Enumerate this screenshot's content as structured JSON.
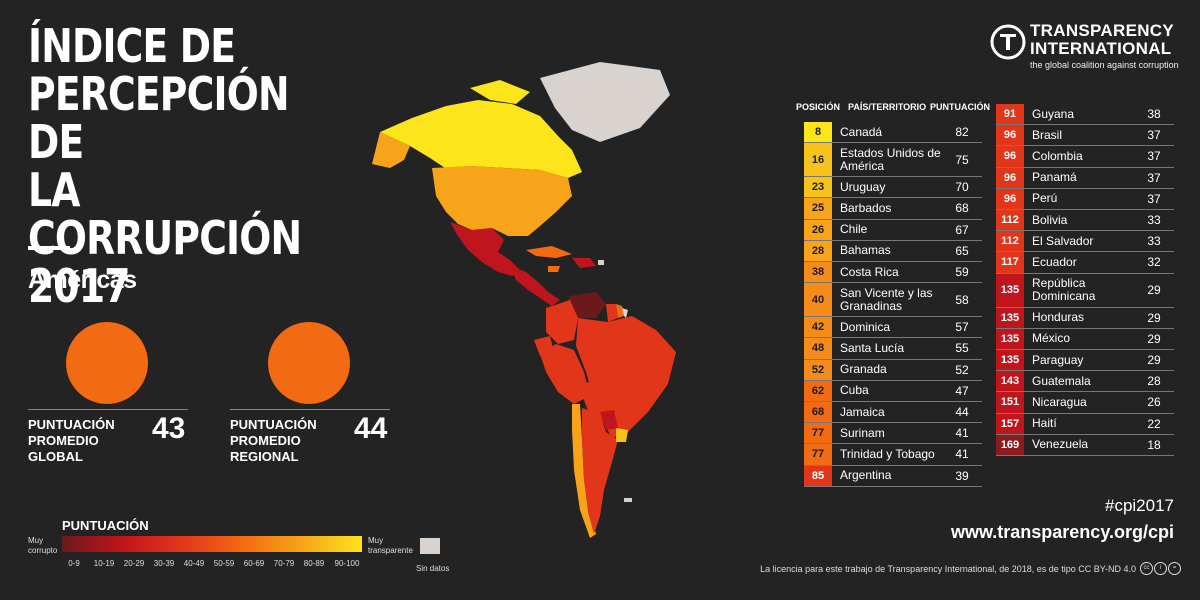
{
  "title": [
    "ÍNDICE DE",
    "PERCEPCIÓN DE",
    "LA CORRUPCIÓN",
    "2017"
  ],
  "region": "Américas",
  "stats": [
    {
      "label": [
        "PUNTUACIÓN",
        "PROMEDIO",
        "GLOBAL"
      ],
      "value": "43"
    },
    {
      "label": [
        "PUNTUACIÓN",
        "PROMEDIO",
        "REGIONAL"
      ],
      "value": "44"
    }
  ],
  "org": {
    "name_line1": "TRANSPARENCY",
    "name_line2": "INTERNATIONAL",
    "tagline": "the global coalition against corruption",
    "logo_icon": "transparency-international-logo"
  },
  "table_headers": {
    "position": "POSICIÓN",
    "country": "PAÍS/TERRITORIO",
    "score": "PUNTUACIÓN"
  },
  "colors": {
    "s80_89": "#fce51b",
    "s70_79": "#f7c21b",
    "s60_69": "#f7a41b",
    "s50_59": "#f58b18",
    "s40_49": "#f26a11",
    "s30_39": "#e2361b",
    "s20_29": "#c0151c",
    "s10_19": "#8c1a1f",
    "s0_9": "#6b1a1a",
    "no_data": "#d9d3cf"
  },
  "left_column": [
    {
      "rank": "8",
      "country": "Canadá",
      "score": "82"
    },
    {
      "rank": "16",
      "country": "Estados Unidos de América",
      "score": "75"
    },
    {
      "rank": "23",
      "country": "Uruguay",
      "score": "70"
    },
    {
      "rank": "25",
      "country": "Barbados",
      "score": "68"
    },
    {
      "rank": "26",
      "country": "Chile",
      "score": "67"
    },
    {
      "rank": "28",
      "country": "Bahamas",
      "score": "65"
    },
    {
      "rank": "38",
      "country": "Costa Rica",
      "score": "59"
    },
    {
      "rank": "40",
      "country": "San Vicente y las Granadinas",
      "score": "58"
    },
    {
      "rank": "42",
      "country": "Dominica",
      "score": "57"
    },
    {
      "rank": "48",
      "country": "Santa Lucía",
      "score": "55"
    },
    {
      "rank": "52",
      "country": "Granada",
      "score": "52"
    },
    {
      "rank": "62",
      "country": "Cuba",
      "score": "47"
    },
    {
      "rank": "68",
      "country": "Jamaica",
      "score": "44"
    },
    {
      "rank": "77",
      "country": "Surinam",
      "score": "41"
    },
    {
      "rank": "77",
      "country": "Trinidad y Tobago",
      "score": "41"
    },
    {
      "rank": "85",
      "country": "Argentina",
      "score": "39"
    }
  ],
  "right_column": [
    {
      "rank": "91",
      "country": "Guyana",
      "score": "38"
    },
    {
      "rank": "96",
      "country": "Brasil",
      "score": "37"
    },
    {
      "rank": "96",
      "country": "Colombia",
      "score": "37"
    },
    {
      "rank": "96",
      "country": "Panamá",
      "score": "37"
    },
    {
      "rank": "96",
      "country": "Perú",
      "score": "37"
    },
    {
      "rank": "112",
      "country": "Bolivia",
      "score": "33"
    },
    {
      "rank": "112",
      "country": "El Salvador",
      "score": "33"
    },
    {
      "rank": "117",
      "country": "Ecuador",
      "score": "32"
    },
    {
      "rank": "135",
      "country": "República Dominicana",
      "score": "29"
    },
    {
      "rank": "135",
      "country": "Honduras",
      "score": "29"
    },
    {
      "rank": "135",
      "country": "México",
      "score": "29"
    },
    {
      "rank": "135",
      "country": "Paraguay",
      "score": "29"
    },
    {
      "rank": "143",
      "country": "Guatemala",
      "score": "28"
    },
    {
      "rank": "151",
      "country": "Nicaragua",
      "score": "26"
    },
    {
      "rank": "157",
      "country": "Haití",
      "score": "22"
    },
    {
      "rank": "169",
      "country": "Venezuela",
      "score": "18"
    }
  ],
  "legend": {
    "title": "PUNTUACIÓN",
    "low_label": [
      "Muy",
      "corrupto"
    ],
    "high_label": [
      "Muy",
      "transparente"
    ],
    "ranges": [
      "0-9",
      "10-19",
      "20-29",
      "30-39",
      "40-49",
      "50-59",
      "60-69",
      "70-79",
      "80-89",
      "90-100"
    ],
    "no_data": "Sin datos"
  },
  "hashtag": "#cpi2017",
  "url": "www.transparency.org/cpi",
  "license": "La licencia para este trabajo de Transparency International, de 2018, es de tipo CC BY-ND 4.0"
}
